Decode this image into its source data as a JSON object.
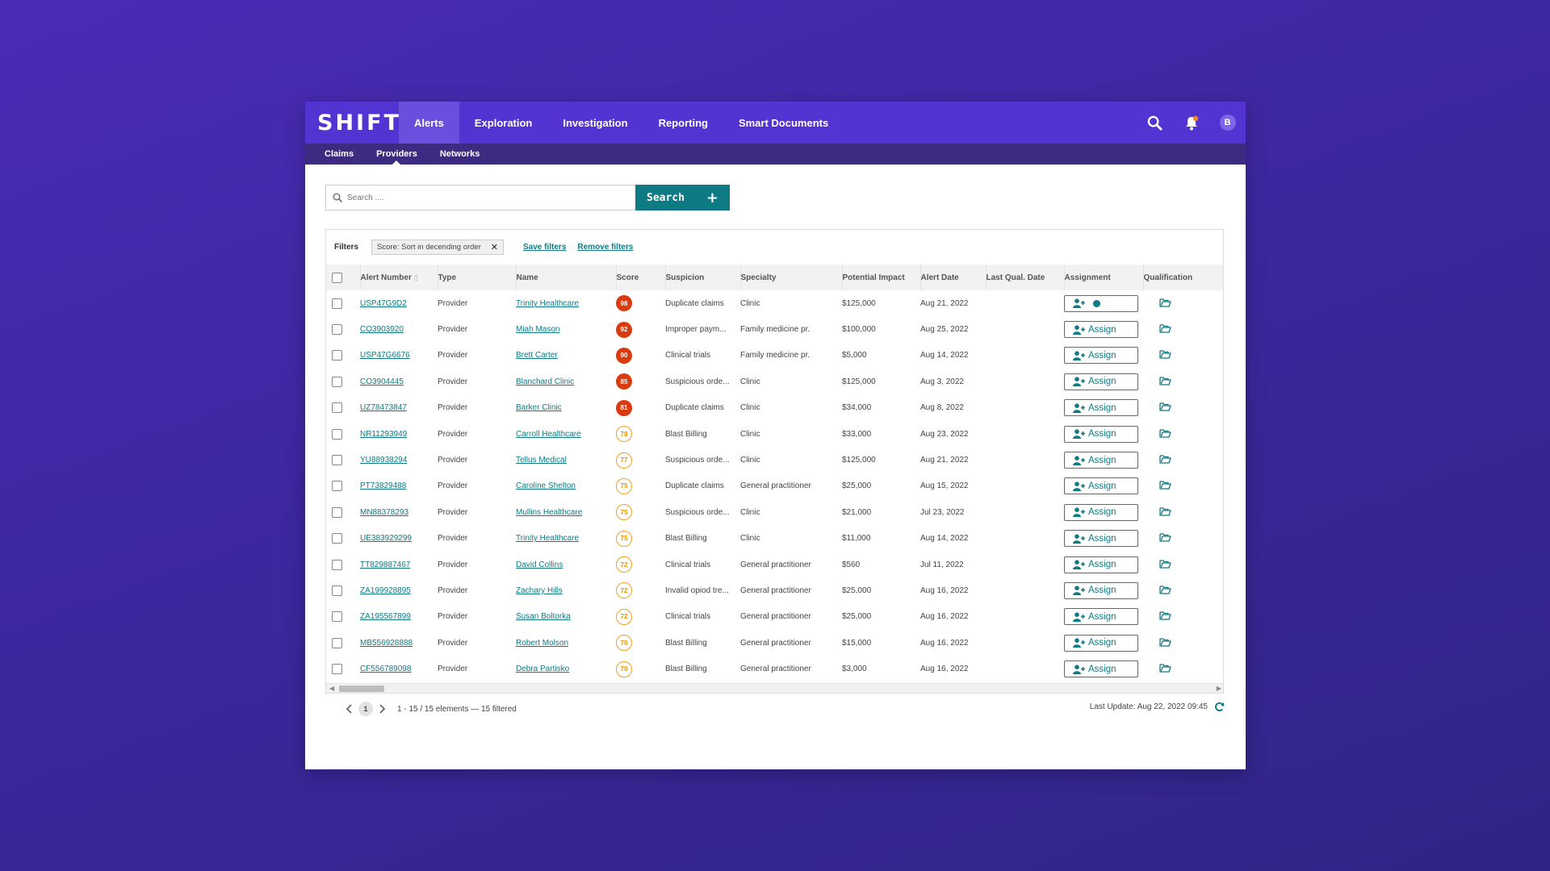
{
  "app": {
    "logo": "SHIFT",
    "avatar_initial": "B",
    "nav": [
      {
        "label": "Alerts",
        "active": true
      },
      {
        "label": "Exploration",
        "active": false
      },
      {
        "label": "Investigation",
        "active": false
      },
      {
        "label": "Reporting",
        "active": false
      },
      {
        "label": "Smart Documents",
        "active": false
      }
    ],
    "subnav": [
      {
        "label": "Claims",
        "active": false
      },
      {
        "label": "Providers",
        "active": true
      },
      {
        "label": "Networks",
        "active": false
      }
    ]
  },
  "search": {
    "placeholder": "Search ....",
    "button_label": "Search",
    "add_label": "+"
  },
  "filters": {
    "label": "Filters",
    "chip": "Score: Sort in decending order",
    "save": "Save filters",
    "remove": "Remove filters"
  },
  "table": {
    "columns": [
      "Alert Number",
      "Type",
      "Name",
      "Score",
      "Suspicion",
      "Specialty",
      "Potential Impact",
      "Alert Date",
      "Last Qual. Date",
      "Assignment",
      "Qualification"
    ],
    "assign_label": "Assign",
    "rows": [
      {
        "alert": "USP47G9D2",
        "type": "Provider",
        "name": "Trinity Healthcare",
        "score": "98",
        "level": "high",
        "suspicion": "Duplicate claims",
        "specialty": "Clinic",
        "impact": "$125,000",
        "date": "Aug 21, 2022",
        "assigned": true
      },
      {
        "alert": "CO3903920",
        "type": "Provider",
        "name": "Miah Mason",
        "score": "92",
        "level": "high",
        "suspicion": "Improper paym...",
        "specialty": "Family medicine pr.",
        "impact": "$100,000",
        "date": "Aug 25, 2022",
        "assigned": false
      },
      {
        "alert": "USP47G6676",
        "type": "Provider",
        "name": "Brett Carter",
        "score": "90",
        "level": "high",
        "suspicion": "Clinical trials",
        "specialty": "Family medicine pr.",
        "impact": "$5,000",
        "date": "Aug 14, 2022",
        "assigned": false
      },
      {
        "alert": "CO3904445",
        "type": "Provider",
        "name": "Blanchard Clinic",
        "score": "85",
        "level": "high",
        "suspicion": "Suspicious orde...",
        "specialty": "Clinic",
        "impact": "$125,000",
        "date": "Aug 3, 2022",
        "assigned": false
      },
      {
        "alert": "UZ78473847",
        "type": "Provider",
        "name": "Barker Clinic",
        "score": "81",
        "level": "high",
        "suspicion": "Duplicate claims",
        "specialty": "Clinic",
        "impact": "$34,000",
        "date": "Aug 8, 2022",
        "assigned": false
      },
      {
        "alert": "NR11293949",
        "type": "Provider",
        "name": "Carroll Healthcare",
        "score": "78",
        "level": "med",
        "suspicion": "Blast Billing",
        "specialty": "Clinic",
        "impact": "$33,000",
        "date": "Aug 23, 2022",
        "assigned": false
      },
      {
        "alert": "YU88938294",
        "type": "Provider",
        "name": "Tellus Medical",
        "score": "77",
        "level": "med",
        "suspicion": "Suspicious orde...",
        "specialty": "Clinic",
        "impact": "$125,000",
        "date": "Aug 21, 2022",
        "assigned": false
      },
      {
        "alert": "PT73829488",
        "type": "Provider",
        "name": "Caroline Shelton",
        "score": "75",
        "level": "med",
        "suspicion": "Duplicate claims",
        "specialty": "General practitioner",
        "impact": "$25,000",
        "date": "Aug 15, 2022",
        "assigned": false
      },
      {
        "alert": "MN88378293",
        "type": "Provider",
        "name": "Mullins Healthcare",
        "score": "75",
        "level": "med",
        "suspicion": "Suspicious orde...",
        "specialty": "Clinic",
        "impact": "$21,000",
        "date": "Jul 23, 2022",
        "assigned": false
      },
      {
        "alert": "UE383929299",
        "type": "Provider",
        "name": "Trinity Healthcare",
        "score": "75",
        "level": "med",
        "suspicion": "Blast Billing",
        "specialty": "Clinic",
        "impact": "$11,000",
        "date": "Aug 14, 2022",
        "assigned": false
      },
      {
        "alert": "TT829887467",
        "type": "Provider",
        "name": "David Collins",
        "score": "72",
        "level": "med",
        "suspicion": "Clinical trials",
        "specialty": "General practitioner",
        "impact": "$560",
        "date": "Jul 11, 2022",
        "assigned": false
      },
      {
        "alert": "ZA199928895",
        "type": "Provider",
        "name": "Zachary Hills",
        "score": "72",
        "level": "med",
        "suspicion": "Invalid opiod tre...",
        "specialty": "General practitioner",
        "impact": "$25,000",
        "date": "Aug 16, 2022",
        "assigned": false
      },
      {
        "alert": "ZA195567899",
        "type": "Provider",
        "name": "Susan Boltorka",
        "score": "72",
        "level": "med",
        "suspicion": "Clinical trials",
        "specialty": "General practitioner",
        "impact": "$25,000",
        "date": "Aug 16, 2022",
        "assigned": false
      },
      {
        "alert": "MB556928888",
        "type": "Provider",
        "name": "Robert Molson",
        "score": "70",
        "level": "med",
        "suspicion": "Blast Billing",
        "specialty": "General practitioner",
        "impact": "$15,000",
        "date": "Aug 16, 2022",
        "assigned": false
      },
      {
        "alert": "CF556789098",
        "type": "Provider",
        "name": "Debra Partisko",
        "score": "70",
        "level": "med",
        "suspicion": "Blast Billing",
        "specialty": "General practitioner",
        "impact": "$3,000",
        "date": "Aug 16, 2022",
        "assigned": false
      }
    ]
  },
  "pagination": {
    "current_page": "1",
    "info": "1 - 15 / 15 elements — 15 filtered"
  },
  "last_update": "Last Update: Aug 22, 2022 09:45",
  "colors": {
    "brand": "#5334d3",
    "teal": "#0e7a83",
    "score_high": "#d93a0e",
    "score_med": "#f0a020"
  }
}
